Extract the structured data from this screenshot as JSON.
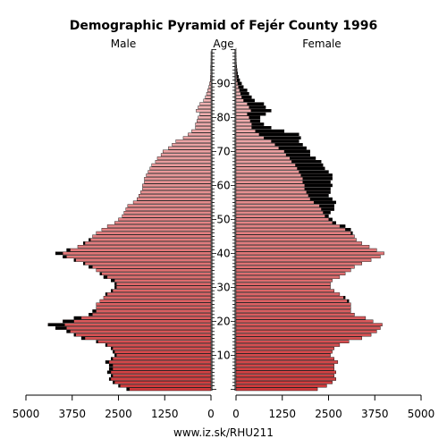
{
  "chart_data": {
    "type": "bar",
    "orientation": "population-pyramid",
    "title": "Demographic Pyramid of Fejér County 1996",
    "left_label": "Male",
    "center_label": "Age",
    "right_label": "Female",
    "footer": "www.iz.sk/RHU211",
    "xlim": [
      0,
      5000
    ],
    "x_ticks": [
      5000,
      3750,
      2500,
      1250,
      0
    ],
    "x_tick_labels": [
      "5000",
      "3750",
      "2500",
      "1250",
      "0"
    ],
    "age_ticks": [
      10,
      20,
      30,
      40,
      50,
      60,
      70,
      80,
      90
    ],
    "age_tick_labels": [
      "10",
      "20",
      "30",
      "40",
      "50",
      "60",
      "70",
      "80",
      "90"
    ],
    "ages": [
      0,
      1,
      2,
      3,
      4,
      5,
      6,
      7,
      8,
      9,
      10,
      11,
      12,
      13,
      14,
      15,
      16,
      17,
      18,
      19,
      20,
      21,
      22,
      23,
      24,
      25,
      26,
      27,
      28,
      29,
      30,
      31,
      32,
      33,
      34,
      35,
      36,
      37,
      38,
      39,
      40,
      41,
      42,
      43,
      44,
      45,
      46,
      47,
      48,
      49,
      50,
      51,
      52,
      53,
      54,
      55,
      56,
      57,
      58,
      59,
      60,
      61,
      62,
      63,
      64,
      65,
      66,
      67,
      68,
      69,
      70,
      71,
      72,
      73,
      74,
      75,
      76,
      77,
      78,
      79,
      80,
      81,
      82,
      83,
      84,
      85,
      86,
      87,
      88,
      89,
      90,
      91,
      92,
      93,
      94,
      95,
      96,
      97,
      98,
      99,
      100
    ],
    "series": [
      {
        "name": "Male",
        "values": [
          2280,
          2500,
          2650,
          2750,
          2700,
          2800,
          2750,
          2750,
          2850,
          2700,
          2600,
          2650,
          2700,
          2850,
          3100,
          3500,
          3700,
          3900,
          4200,
          4400,
          4000,
          3700,
          3300,
          3200,
          3100,
          3100,
          3000,
          2900,
          2850,
          2700,
          2600,
          2600,
          2700,
          2900,
          3000,
          3100,
          3300,
          3450,
          3700,
          4000,
          4200,
          3900,
          3600,
          3450,
          3300,
          3200,
          3100,
          2950,
          2800,
          2600,
          2500,
          2400,
          2350,
          2300,
          2250,
          2100,
          2000,
          1950,
          1900,
          1850,
          1850,
          1800,
          1800,
          1750,
          1700,
          1650,
          1600,
          1500,
          1450,
          1350,
          1300,
          1150,
          1050,
          950,
          750,
          620,
          520,
          420,
          420,
          380,
          350,
          300,
          400,
          350,
          300,
          200,
          150,
          120,
          90,
          60,
          40,
          20,
          15,
          10,
          8,
          5,
          3,
          2,
          1,
          1,
          0
        ]
      },
      {
        "name": "Female",
        "values": [
          2200,
          2450,
          2600,
          2700,
          2650,
          2700,
          2650,
          2650,
          2750,
          2650,
          2550,
          2600,
          2650,
          2800,
          3050,
          3400,
          3650,
          3800,
          3900,
          3950,
          3700,
          3500,
          3200,
          3100,
          3100,
          3100,
          3050,
          2950,
          2800,
          2650,
          2550,
          2550,
          2600,
          2800,
          2950,
          3100,
          3200,
          3400,
          3650,
          3900,
          4000,
          3800,
          3600,
          3400,
          3250,
          3200,
          3150,
          3100,
          2950,
          2700,
          2600,
          2500,
          2550,
          2650,
          2650,
          2700,
          2600,
          2500,
          2550,
          2550,
          2600,
          2550,
          2600,
          2600,
          2500,
          2400,
          2350,
          2300,
          2150,
          2000,
          2000,
          1900,
          1800,
          1700,
          1750,
          1700,
          1300,
          950,
          750,
          650,
          650,
          800,
          950,
          800,
          750,
          500,
          420,
          350,
          300,
          200,
          150,
          100,
          70,
          45,
          30,
          20,
          10,
          6,
          3,
          2,
          1
        ]
      }
    ],
    "colors": {
      "male_bar": [
        "#f3bfc0",
        "#d03a3c"
      ],
      "female_bar": [
        "#f3bfc0",
        "#d03a3c"
      ],
      "excess": "#000000",
      "axis": "#000000"
    }
  }
}
